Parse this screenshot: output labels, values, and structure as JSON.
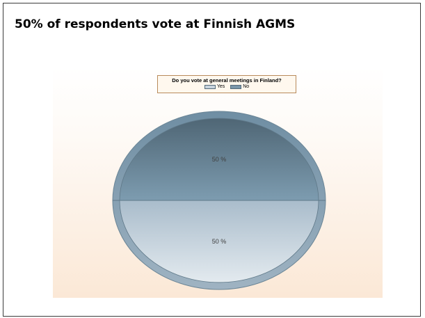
{
  "slide": {
    "title": "50% of respondents vote at Finnish AGMS"
  },
  "chart_data": {
    "type": "pie",
    "title": "Do you vote at general meetings in Finland?",
    "legend_position": "top-center",
    "slices": [
      {
        "label": "Yes",
        "value": 50,
        "display": "50 %",
        "color": "#c7d3dd"
      },
      {
        "label": "No",
        "value": 50,
        "display": "50 %",
        "color": "#7a96aa"
      }
    ]
  }
}
